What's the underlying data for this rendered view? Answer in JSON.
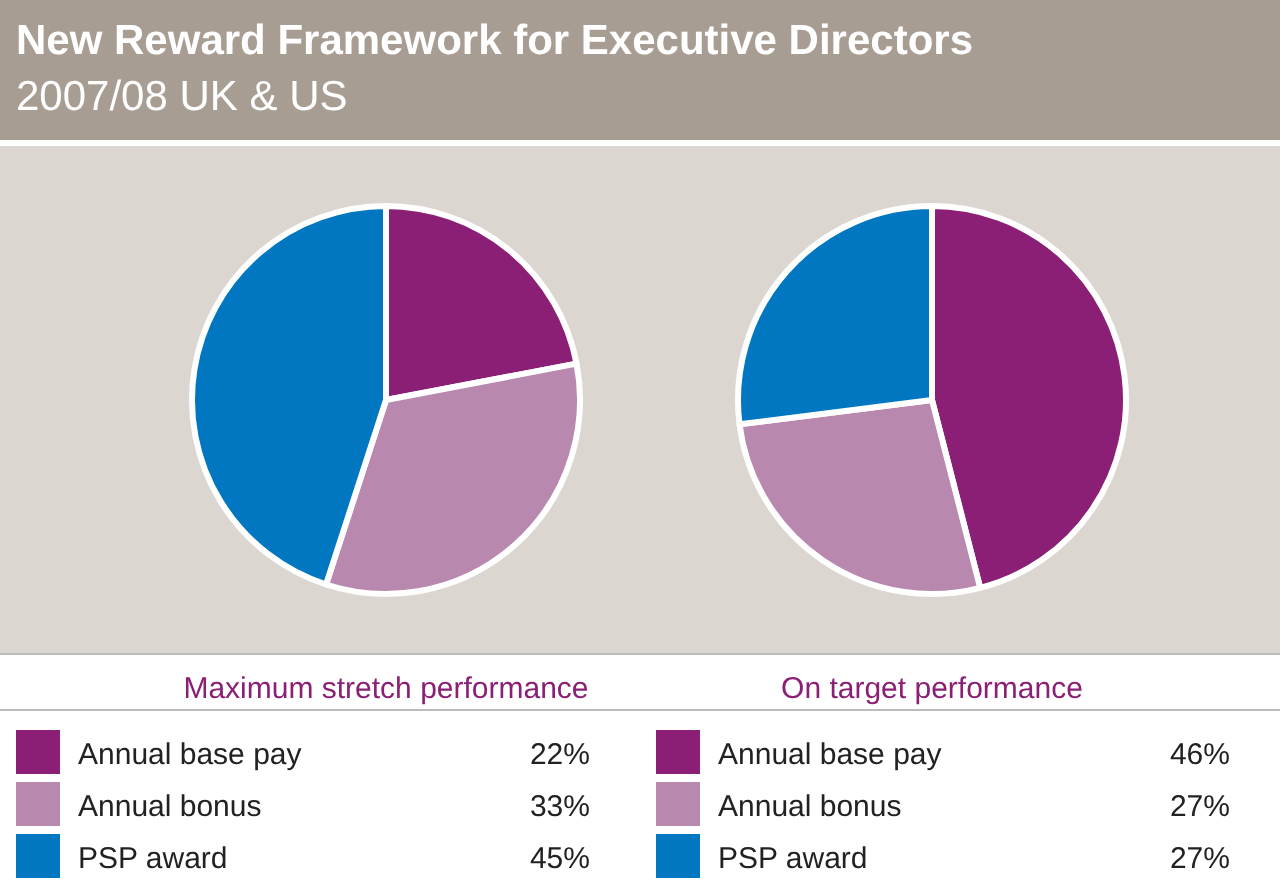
{
  "chart_data": [
    {
      "type": "pie",
      "title": "New Reward Framework for Executive Directors",
      "subtitle": "2007/08 UK & US",
      "xlabel": "Maximum stretch performance",
      "categories": [
        "Annual base pay",
        "Annual bonus",
        "PSP award"
      ],
      "values": [
        22,
        33,
        45
      ],
      "value_labels": [
        "22%",
        "33%",
        "45%"
      ],
      "colors": [
        "#8a1f75",
        "#b888ae",
        "#0077c0"
      ],
      "legend": "bottom"
    },
    {
      "type": "pie",
      "xlabel": "On target performance",
      "categories": [
        "Annual base pay",
        "Annual bonus",
        "PSP award"
      ],
      "values": [
        46,
        27,
        27
      ],
      "value_labels": [
        "46%",
        "27%",
        "27%"
      ],
      "colors": [
        "#8a1f75",
        "#b888ae",
        "#0077c0"
      ],
      "legend": "bottom"
    }
  ]
}
